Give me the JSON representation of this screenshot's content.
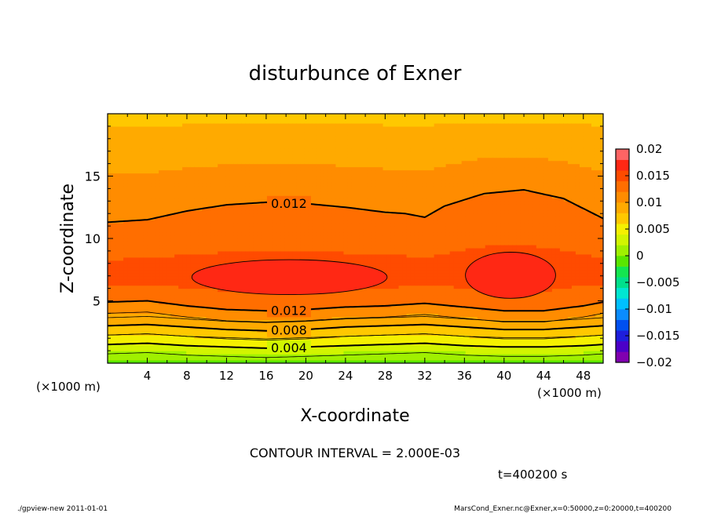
{
  "chart_data": {
    "type": "contour",
    "title": "disturbunce of Exner",
    "xlabel": "X-coordinate",
    "ylabel": "Z-coordinate",
    "x_unit_left": "(×1000 m)",
    "x_unit_right": "(×1000 m)",
    "xlim": [
      0,
      50
    ],
    "ylim": [
      0,
      20
    ],
    "x_ticks": [
      4,
      8,
      12,
      16,
      20,
      24,
      28,
      32,
      36,
      40,
      44,
      48
    ],
    "x_tick_labels": [
      "4",
      "8",
      "12",
      "16",
      "20",
      "24",
      "28",
      "32",
      "36",
      "40",
      "44",
      "48"
    ],
    "y_ticks": [
      5,
      10,
      15
    ],
    "y_tick_labels": [
      "5",
      "10",
      "15"
    ],
    "contour_interval_text": "CONTOUR INTERVAL = 2.000E-03",
    "time_text": "t=400200 s",
    "colorbar": {
      "levels": [
        -0.02,
        -0.018,
        -0.016,
        -0.014,
        -0.012,
        -0.01,
        -0.008,
        -0.006,
        -0.004,
        -0.002,
        0,
        0.002,
        0.004,
        0.006,
        0.008,
        0.01,
        0.012,
        0.014,
        0.016,
        0.018,
        0.02
      ],
      "tick_values": [
        0.02,
        0.015,
        0.01,
        0.005,
        0,
        -0.005,
        -0.01,
        -0.015,
        -0.02
      ],
      "tick_labels": [
        "0.02",
        "0.015",
        "0.01",
        "0.005",
        "0",
        "−0.005",
        "−0.01",
        "−0.015",
        "−0.02"
      ],
      "colors": [
        "#8000b0",
        "#4b00c8",
        "#1e1edc",
        "#0050f0",
        "#0a8cff",
        "#00c0ff",
        "#00e6d2",
        "#00e08c",
        "#14e650",
        "#5ae600",
        "#a0f000",
        "#d2f500",
        "#f5f000",
        "#ffc800",
        "#ffaa00",
        "#ff8c00",
        "#ff6e00",
        "#ff4b00",
        "#ff2814",
        "#ff6464"
      ]
    },
    "labeled_contours": [
      {
        "value": 0.012,
        "label": "0.012",
        "z_profile": {
          "x": [
            0,
            4,
            8,
            12,
            16,
            20,
            24,
            28,
            30,
            32,
            34,
            38,
            42,
            46,
            50
          ],
          "z": [
            11.3,
            11.5,
            12.2,
            12.7,
            12.9,
            12.8,
            12.5,
            12.1,
            12.0,
            11.7,
            12.6,
            13.6,
            13.9,
            13.2,
            11.6
          ]
        }
      },
      {
        "value": 0.012,
        "label": "0.012",
        "z_profile": {
          "x": [
            0,
            4,
            8,
            12,
            16,
            20,
            24,
            28,
            32,
            36,
            40,
            44,
            48,
            50
          ],
          "z": [
            4.9,
            5.0,
            4.6,
            4.3,
            4.2,
            4.3,
            4.5,
            4.6,
            4.8,
            4.5,
            4.2,
            4.2,
            4.6,
            4.9
          ]
        }
      },
      {
        "value": 0.008,
        "label": "0.008",
        "z_profile": {
          "x": [
            0,
            4,
            8,
            12,
            16,
            20,
            24,
            28,
            32,
            36,
            40,
            44,
            48,
            50
          ],
          "z": [
            3.0,
            3.1,
            2.9,
            2.7,
            2.6,
            2.7,
            2.9,
            3.0,
            3.1,
            2.9,
            2.7,
            2.7,
            2.9,
            3.0
          ]
        }
      },
      {
        "value": 0.004,
        "label": "0.004",
        "z_profile": {
          "x": [
            0,
            4,
            8,
            12,
            16,
            20,
            24,
            28,
            32,
            36,
            40,
            44,
            48,
            50
          ],
          "z": [
            1.5,
            1.6,
            1.4,
            1.3,
            1.2,
            1.3,
            1.4,
            1.5,
            1.6,
            1.4,
            1.3,
            1.3,
            1.4,
            1.5
          ]
        }
      }
    ],
    "max_regions": [
      {
        "level": 0.016,
        "x_range": [
          8.5,
          28.2
        ],
        "z_range": [
          5.5,
          8.3
        ]
      },
      {
        "level": 0.016,
        "x_range": [
          36.1,
          45.2
        ],
        "z_range": [
          5.2,
          8.9
        ]
      }
    ]
  },
  "footer": {
    "left": "./gpview-new   2011-01-01",
    "right": "MarsCond_Exner.nc@Exner,x=0:50000,z=0:20000,t=400200"
  }
}
